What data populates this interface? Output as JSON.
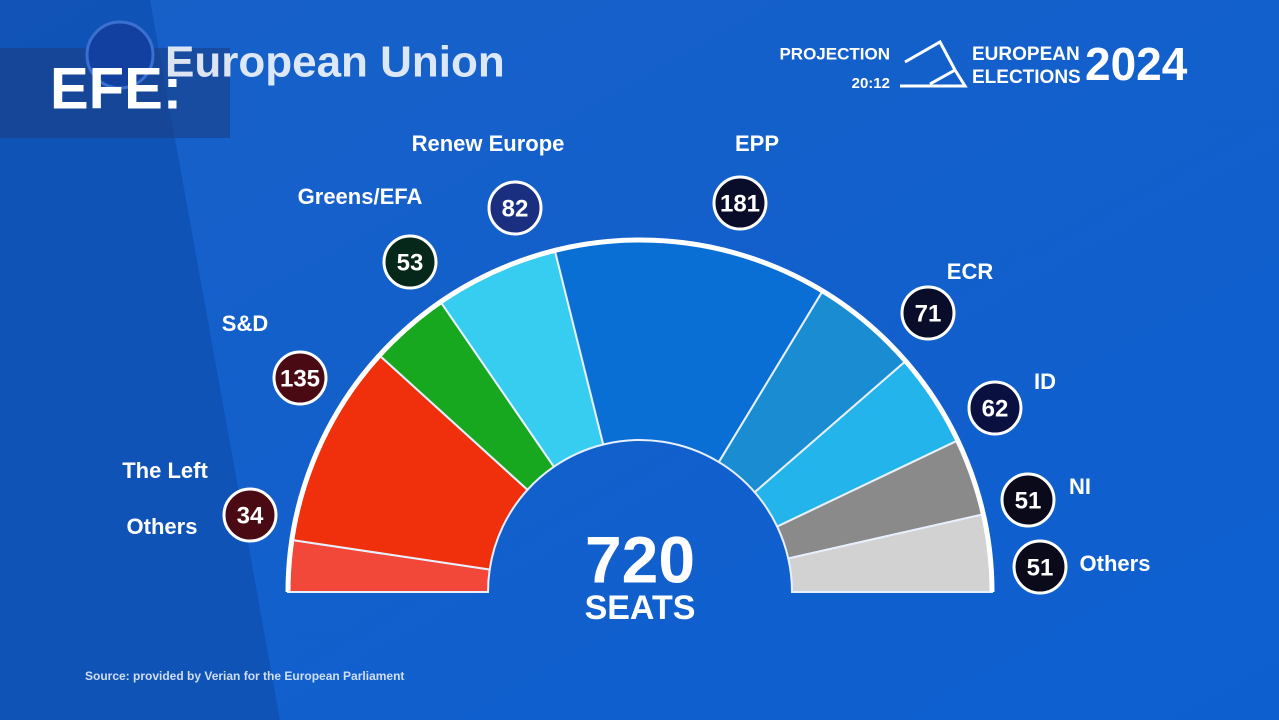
{
  "header": {
    "logo": "EFE:",
    "title": "European Union",
    "projection": "PROJECTION",
    "time": "20:12",
    "election_line1": "EUROPEAN",
    "election_line2": "ELECTIONS",
    "year": "2024"
  },
  "chart_data": {
    "type": "parliament",
    "categories": [
      "The Left",
      "S&D",
      "Greens/EFA",
      "Renew Europe",
      "EPP",
      "ECR",
      "ID",
      "NI",
      "Others"
    ],
    "series": [
      {
        "colors": [
          "#f2483a",
          "#f0300c",
          "#17a820",
          "#36cdf0",
          "#0a6fd4",
          "#1a8dd2",
          "#22b4ea",
          "#8a8a8a",
          "#d2d2d2"
        ],
        "values": [
          34,
          135,
          53,
          82,
          181,
          71,
          62,
          51,
          51
        ]
      }
    ],
    "annotation": "Others",
    "total": 720,
    "total_label": "SEATS",
    "source": "Source: provided by Verian for the European Parliament"
  }
}
